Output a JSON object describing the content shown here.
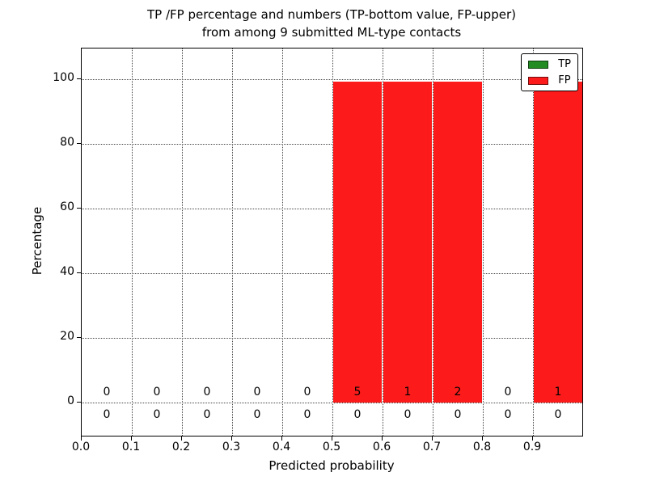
{
  "chart_data": {
    "type": "bar",
    "title": "TP /FP percentage and numbers (TP-bottom value, FP-upper) from among 9 submitted ML-type contacts",
    "title_line1": "TP /FP percentage and numbers (TP-bottom value, FP-upper)",
    "title_line2": "from among 9 submitted ML-type contacts",
    "xlabel": "Predicted probability",
    "ylabel": "Percentage",
    "xlim": [
      0.0,
      1.0
    ],
    "ylim": [
      -10.5,
      109.5
    ],
    "grid": true,
    "legend_position": "upper right",
    "bin_edges": [
      0.0,
      0.1,
      0.2,
      0.3,
      0.4,
      0.5,
      0.6,
      0.7,
      0.8,
      0.9,
      1.0
    ],
    "x_tick_values": [
      0.0,
      0.1,
      0.2,
      0.3,
      0.4,
      0.5,
      0.6,
      0.7,
      0.8,
      0.9
    ],
    "x_tick_labels": [
      "0.0",
      "0.1",
      "0.2",
      "0.3",
      "0.4",
      "0.5",
      "0.6",
      "0.7",
      "0.8",
      "0.9"
    ],
    "y_tick_values": [
      0,
      20,
      40,
      60,
      80,
      100
    ],
    "y_tick_labels": [
      "0",
      "20",
      "40",
      "60",
      "80",
      "100"
    ],
    "series": [
      {
        "name": "TP",
        "color": "#228b22",
        "percent": [
          0,
          0,
          0,
          0,
          0,
          0,
          0,
          0,
          0,
          0
        ],
        "counts": [
          0,
          0,
          0,
          0,
          0,
          0,
          0,
          0,
          0,
          0
        ]
      },
      {
        "name": "FP",
        "color": "#fd1a1a",
        "percent": [
          0,
          0,
          0,
          0,
          0,
          100,
          100,
          100,
          0,
          100
        ],
        "counts": [
          0,
          0,
          0,
          0,
          0,
          5,
          1,
          2,
          0,
          1
        ]
      }
    ]
  }
}
